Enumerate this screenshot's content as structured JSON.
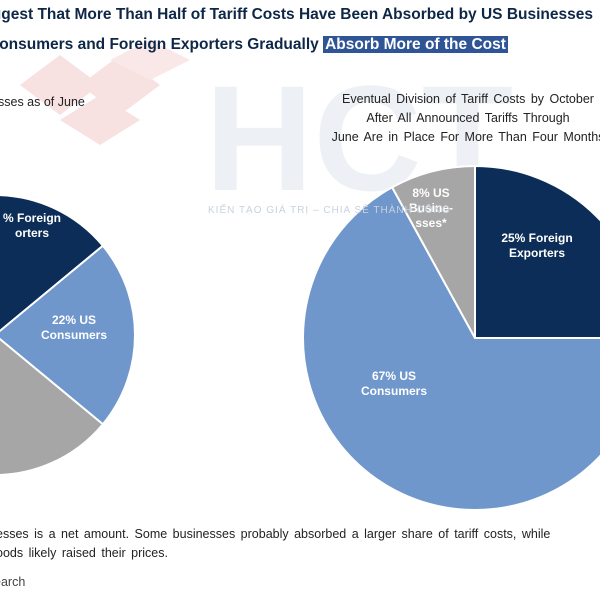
{
  "title": {
    "line1": "Suggest That More Than Half of Tariff Costs Have Been Absorbed by US Businesses",
    "line2_prefix": "Consumers and Foreign Exporters Gradually",
    "line2_highlight": "Absorb More of the Cost"
  },
  "left_chart": {
    "subtitle": "sses as of June"
  },
  "right_chart": {
    "subtitle_lines": [
      "Eventual Division of Tariff Costs by October",
      "After All Announced Tariffs Through",
      "June Are in Place For More Than Four Months"
    ]
  },
  "watermark": {
    "text": "HCT",
    "tagline": "KIẾN TẠO GIÁ TRỊ – CHIA SẺ THÀNH CÔNG"
  },
  "footnote": {
    "line1": "esses is a net amount. Some businesses probably absorbed a larger share of tariff costs, while",
    "line2": "oods likely raised their prices."
  },
  "source": "earch",
  "colors": {
    "navy": "#0c2d57",
    "light_blue": "#6f97cc",
    "gray": "#a6a6a6",
    "title": "#0e2747",
    "highlight": "#2f5597"
  },
  "chart_data": [
    {
      "type": "pie",
      "title": "",
      "slices": [
        {
          "label_lines": [
            "% Foreign",
            "orters"
          ],
          "value": 14,
          "color": "#0c2d57"
        },
        {
          "label_lines": [
            "22% US",
            "Consumers"
          ],
          "value": 22,
          "color": "#6f97cc"
        },
        {
          "label_lines": [],
          "value": 64,
          "color": "#a6a6a6"
        }
      ]
    },
    {
      "type": "pie",
      "title": "Eventual Division of Tariff Costs by October After All Announced Tariffs Through June Are in Place For More Than Four Months",
      "slices": [
        {
          "label_lines": [
            "25% Foreign",
            "Exporters"
          ],
          "value": 25,
          "color": "#0c2d57"
        },
        {
          "label_lines": [
            "67% US",
            "Consumers"
          ],
          "value": 67,
          "color": "#6f97cc"
        },
        {
          "label_lines": [
            "8% US",
            "Busine-",
            "sses*"
          ],
          "value": 8,
          "color": "#a6a6a6"
        }
      ]
    }
  ]
}
